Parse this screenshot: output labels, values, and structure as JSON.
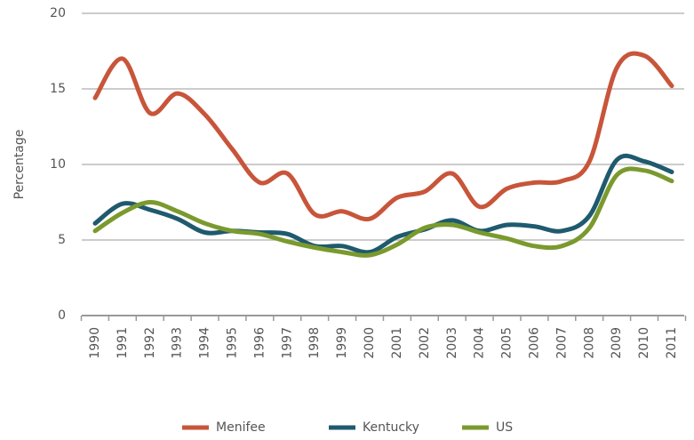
{
  "chart_data": {
    "type": "line",
    "y_label": "Percentage",
    "categories": [
      "1990",
      "1991",
      "1992",
      "1993",
      "1994",
      "1995",
      "1996",
      "1997",
      "1998",
      "1999",
      "2000",
      "2001",
      "2002",
      "2003",
      "2004",
      "2005",
      "2006",
      "2007",
      "2008",
      "2009",
      "2010",
      "2011"
    ],
    "series": [
      {
        "name": "Menifee",
        "color": "#c8553a",
        "values": [
          14.4,
          17.0,
          13.4,
          14.7,
          13.3,
          11.0,
          8.8,
          9.4,
          6.7,
          6.9,
          6.4,
          7.8,
          8.2,
          9.4,
          7.2,
          8.4,
          8.8,
          8.9,
          10.2,
          16.4,
          17.2,
          15.2
        ]
      },
      {
        "name": "Kentucky",
        "color": "#1f5a6e",
        "values": [
          6.1,
          7.4,
          7.0,
          6.4,
          5.5,
          5.6,
          5.5,
          5.4,
          4.6,
          4.6,
          4.2,
          5.2,
          5.7,
          6.3,
          5.6,
          6.0,
          5.9,
          5.6,
          6.6,
          10.3,
          10.2,
          9.5
        ]
      },
      {
        "name": "US",
        "color": "#7a9a2e",
        "values": [
          5.6,
          6.8,
          7.5,
          6.9,
          6.1,
          5.6,
          5.4,
          4.9,
          4.5,
          4.2,
          4.0,
          4.7,
          5.8,
          6.0,
          5.5,
          5.1,
          4.6,
          4.6,
          5.8,
          9.3,
          9.6,
          8.9
        ]
      }
    ],
    "ylim": [
      0,
      20
    ],
    "yticks": [
      0,
      5,
      10,
      15,
      20
    ],
    "grid": true,
    "legend": "bottom"
  }
}
